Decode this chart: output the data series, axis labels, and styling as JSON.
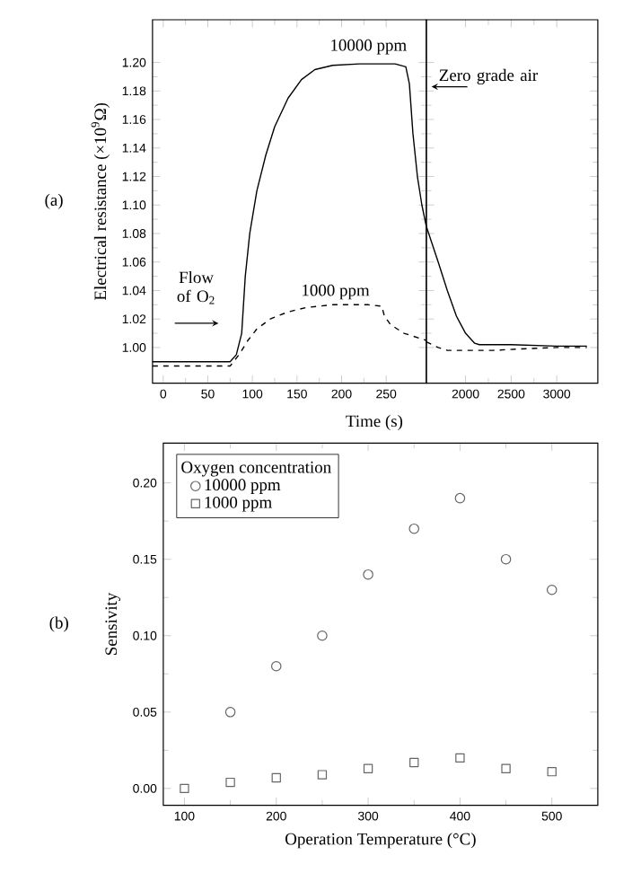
{
  "chart_data": [
    {
      "type": "line",
      "xlabel": "Time (s)",
      "ylabel": "Electrical resistance (×10$^{9}$Ω)",
      "xlim": [
        -12,
        295
      ],
      "ylim": [
        0.975,
        1.23
      ],
      "xticks": [
        0,
        50,
        100,
        150,
        200,
        250
      ],
      "yticks": [
        {
          "value": 1.0,
          "label": "1.00"
        },
        {
          "value": 1.02,
          "label": "1.02"
        },
        {
          "value": 1.04,
          "label": "1.04"
        },
        {
          "value": 1.06,
          "label": "1.06"
        },
        {
          "value": 1.08,
          "label": "1.08"
        },
        {
          "value": 1.1,
          "label": "1.10"
        },
        {
          "value": 1.12,
          "label": "1.12"
        },
        {
          "value": 1.14,
          "label": "1.14"
        },
        {
          "value": 1.16,
          "label": "1.16"
        },
        {
          "value": 1.18,
          "label": "1.18"
        },
        {
          "value": 1.2,
          "label": "1.20"
        }
      ],
      "series": [
        {
          "color": "#000000",
          "line_style": "solid",
          "x": [
            -12,
            75,
            82,
            88,
            92,
            97,
            105,
            115,
            125,
            140,
            155,
            170,
            190,
            220,
            260,
            272,
            276,
            280,
            285,
            290,
            295
          ],
          "values": [
            0.99,
            0.99,
            0.995,
            1.01,
            1.05,
            1.08,
            1.11,
            1.135,
            1.155,
            1.175,
            1.188,
            1.195,
            1.198,
            1.199,
            1.199,
            1.197,
            1.185,
            1.15,
            1.12,
            1.1,
            1.085
          ]
        },
        {
          "color": "#000000",
          "line_style": "dashed",
          "x": [
            -12,
            75,
            85,
            95,
            105,
            120,
            140,
            160,
            190,
            230,
            245,
            248,
            255,
            270,
            295
          ],
          "values": [
            0.987,
            0.987,
            0.995,
            1.005,
            1.013,
            1.02,
            1.025,
            1.028,
            1.03,
            1.03,
            1.029,
            1.022,
            1.016,
            1.01,
            1.005
          ]
        }
      ],
      "annotations": [
        "(a)",
        "10000 ppm",
        "1000 ppm",
        "Flow of O$_{2}$"
      ]
    },
    {
      "type": "line",
      "xlim": [
        1570,
        3450
      ],
      "ylim": [
        0.975,
        1.23
      ],
      "xticks": [
        2000,
        2500,
        3000
      ],
      "tick_labels": "x",
      "yticks": [
        1.0,
        1.02,
        1.04,
        1.06,
        1.08,
        1.1,
        1.12,
        1.14,
        1.16,
        1.18,
        1.2
      ],
      "series": [
        {
          "color": "#000000",
          "line_style": "solid",
          "x": [
            1570,
            1700,
            1800,
            1900,
            2000,
            2100,
            2150,
            2500,
            3000,
            3330
          ],
          "values": [
            1.085,
            1.06,
            1.04,
            1.022,
            1.01,
            1.003,
            1.002,
            1.002,
            1.001,
            1.001
          ]
        },
        {
          "color": "#000000",
          "line_style": "dashed",
          "x": [
            1570,
            1700,
            1800,
            2000,
            2300,
            2600,
            3000,
            3330
          ],
          "values": [
            1.004,
            1.0,
            0.998,
            0.998,
            0.998,
            0.999,
            1.0,
            1.0
          ]
        }
      ],
      "annotations": [
        "Zero grade air"
      ]
    },
    {
      "type": "scatter",
      "xlabel": "Operation Temperature (°C)",
      "ylabel": "Sensivity",
      "xlim": [
        77,
        550
      ],
      "ylim": [
        -0.011,
        0.226
      ],
      "xticks": [
        100,
        200,
        300,
        400,
        500
      ],
      "yticks": [
        {
          "value": 0,
          "label": "0.00"
        },
        {
          "value": 0.05,
          "label": "0.05"
        },
        {
          "value": 0.1,
          "label": "0.10"
        },
        {
          "value": 0.15,
          "label": "0.15"
        },
        {
          "value": 0.2,
          "label": "0.20"
        }
      ],
      "legend": "top left",
      "legend_title": "Oxygen concentration",
      "series": [
        {
          "name": "10000 ppm",
          "color": "#666666",
          "marker": "circle",
          "x": [
            150,
            200,
            250,
            300,
            350,
            400,
            450,
            500
          ],
          "values": [
            0.05,
            0.08,
            0.1,
            0.14,
            0.17,
            0.19,
            0.15,
            0.13
          ]
        },
        {
          "name": "1000 ppm",
          "color": "#666666",
          "marker": "square",
          "x": [
            100,
            150,
            200,
            250,
            300,
            350,
            400,
            450,
            500
          ],
          "values": [
            0,
            0.004,
            0.007,
            0.009,
            0.013,
            0.017,
            0.02,
            0.013,
            0.011
          ]
        }
      ],
      "annotations": [
        "(b)"
      ]
    }
  ]
}
